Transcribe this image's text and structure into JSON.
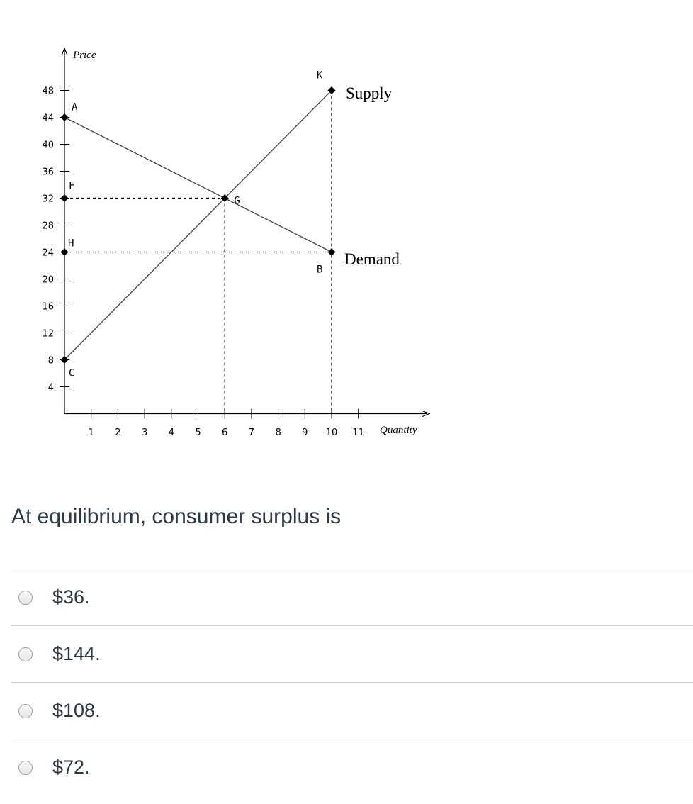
{
  "chart_data": {
    "type": "line",
    "ylabel": "Price",
    "xlabel": "Quantity",
    "y_ticks": [
      4,
      8,
      12,
      16,
      20,
      24,
      28,
      32,
      36,
      40,
      44,
      48
    ],
    "x_ticks": [
      1,
      2,
      3,
      4,
      5,
      6,
      7,
      8,
      9,
      10,
      11
    ],
    "series": [
      {
        "name": "Supply",
        "points": [
          [
            0,
            8
          ],
          [
            10,
            48
          ]
        ]
      },
      {
        "name": "Demand",
        "points": [
          [
            0,
            44
          ],
          [
            10,
            24
          ]
        ]
      }
    ],
    "points": [
      {
        "label": "A",
        "x": 0,
        "y": 44
      },
      {
        "label": "F",
        "x": 0,
        "y": 32
      },
      {
        "label": "H",
        "x": 0,
        "y": 24
      },
      {
        "label": "C",
        "x": 0,
        "y": 8
      },
      {
        "label": "G",
        "x": 6,
        "y": 32
      },
      {
        "label": "K",
        "x": 10,
        "y": 48
      },
      {
        "label": "B",
        "x": 10,
        "y": 24
      }
    ],
    "guides": [
      {
        "from": [
          0,
          32
        ],
        "to": [
          6,
          32
        ]
      },
      {
        "from": [
          0,
          24
        ],
        "to": [
          10,
          24
        ]
      },
      {
        "from": [
          6,
          32
        ],
        "to": [
          6,
          0
        ]
      },
      {
        "from": [
          10,
          48
        ],
        "to": [
          10,
          0
        ]
      }
    ]
  },
  "question": {
    "text": "At equilibrium, consumer surplus is"
  },
  "options": [
    {
      "label": "$36."
    },
    {
      "label": "$144."
    },
    {
      "label": "$108."
    },
    {
      "label": "$72."
    }
  ]
}
